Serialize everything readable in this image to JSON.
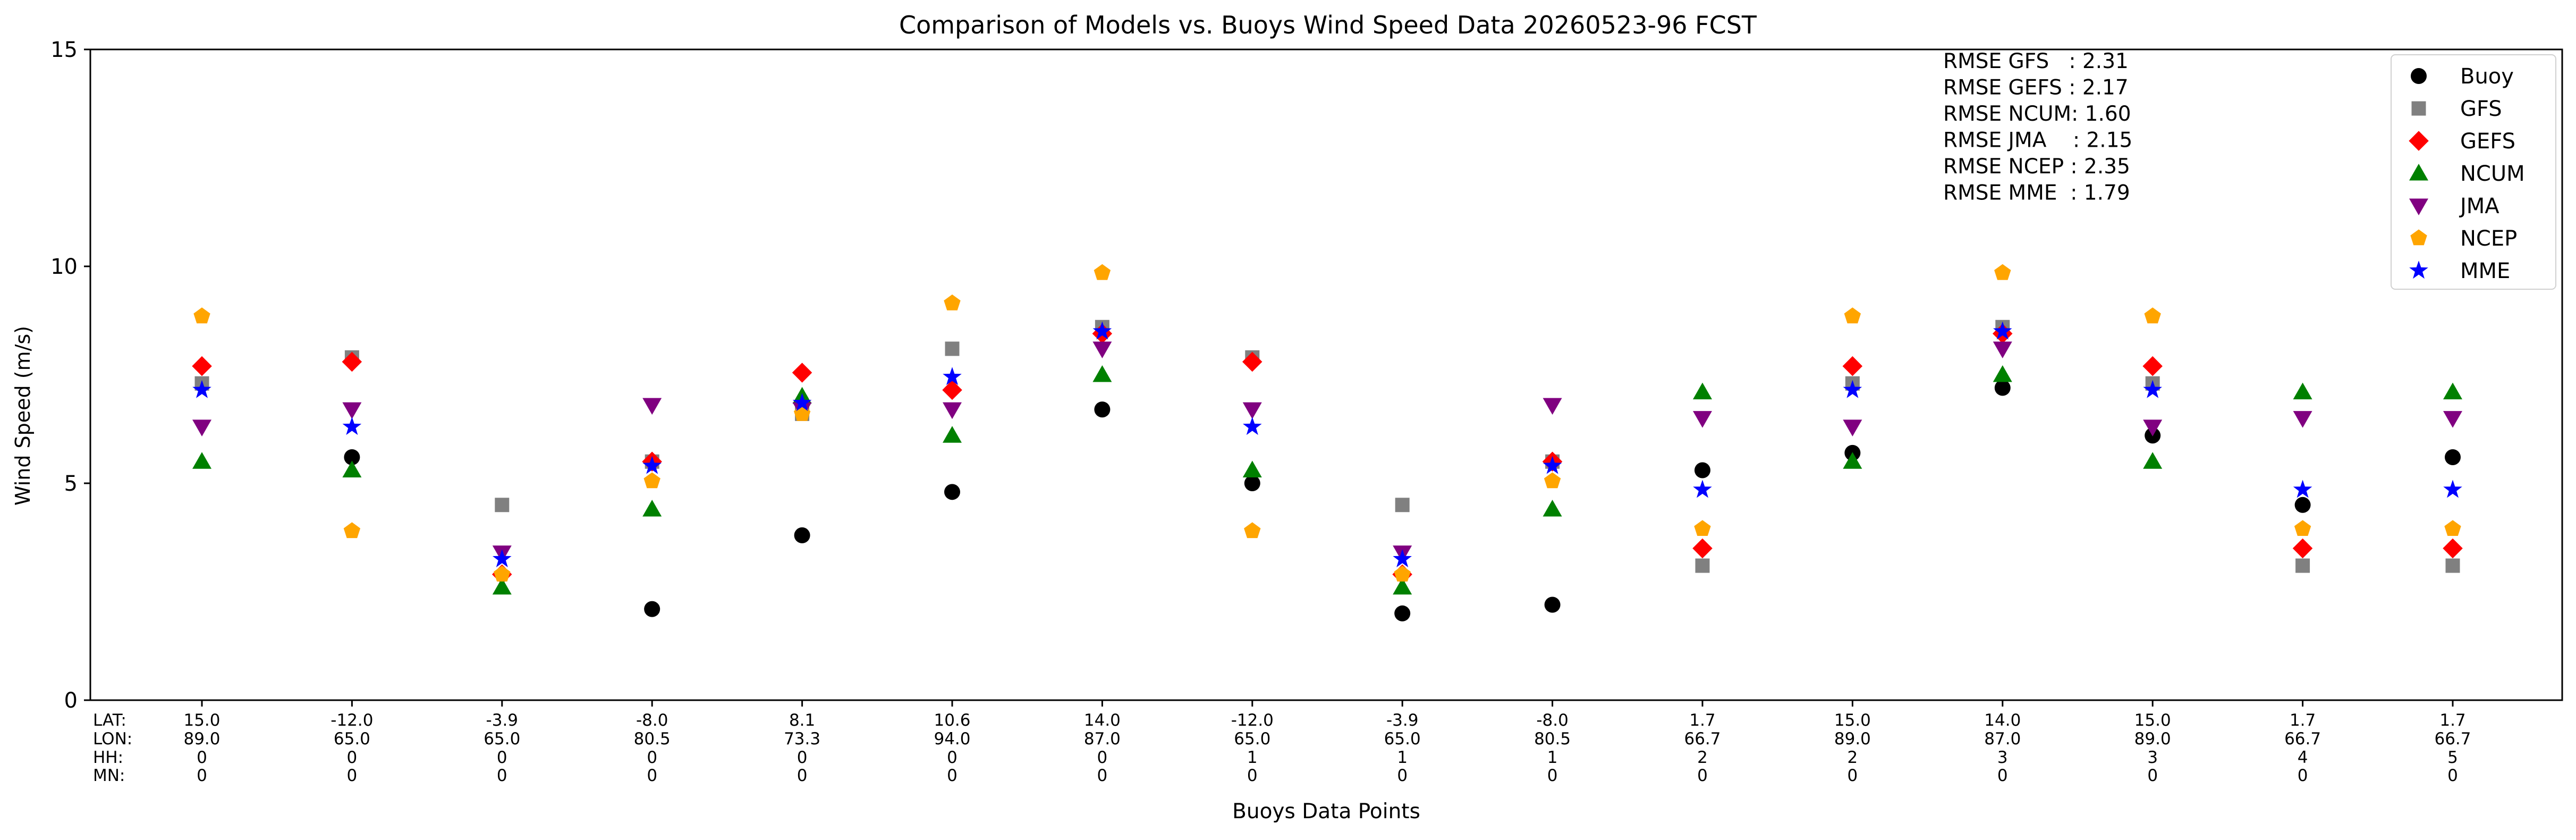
{
  "chart_data": {
    "type": "scatter",
    "title": "Comparison of Models vs. Buoys Wind Speed Data 20260523-96 FCST",
    "xlabel": "Buoys Data Points",
    "ylabel": "Wind Speed (m/s)",
    "ylim": [
      0,
      15
    ],
    "yticks": [
      0,
      5,
      10,
      15
    ],
    "grid": false,
    "legend_position": "top-right",
    "row_labels": [
      "LAT:",
      "LON:",
      "HH:",
      "MN:"
    ],
    "x_columns": [
      [
        "15.0",
        "89.0",
        "0",
        "0"
      ],
      [
        "-12.0",
        "65.0",
        "0",
        "0"
      ],
      [
        "-3.9",
        "65.0",
        "0",
        "0"
      ],
      [
        "-8.0",
        "80.5",
        "0",
        "0"
      ],
      [
        "8.1",
        "73.3",
        "0",
        "0"
      ],
      [
        "10.6",
        "94.0",
        "0",
        "0"
      ],
      [
        "14.0",
        "87.0",
        "0",
        "0"
      ],
      [
        "-12.0",
        "65.0",
        "1",
        "0"
      ],
      [
        "-3.9",
        "65.0",
        "1",
        "0"
      ],
      [
        "-8.0",
        "80.5",
        "1",
        "0"
      ],
      [
        "1.7",
        "66.7",
        "2",
        "0"
      ],
      [
        "15.0",
        "89.0",
        "2",
        "0"
      ],
      [
        "14.0",
        "87.0",
        "3",
        "0"
      ],
      [
        "15.0",
        "89.0",
        "3",
        "0"
      ],
      [
        "1.7",
        "66.7",
        "4",
        "0"
      ],
      [
        "1.7",
        "66.7",
        "5",
        "0"
      ]
    ],
    "series": [
      {
        "name": "Buoy",
        "color": "#000000",
        "marker": "circle",
        "values": [
          null,
          5.6,
          null,
          2.1,
          3.8,
          4.8,
          6.7,
          5.0,
          2.0,
          2.2,
          5.3,
          5.7,
          7.2,
          6.1,
          4.5,
          5.6
        ]
      },
      {
        "name": "GFS",
        "color": "#808080",
        "marker": "square",
        "values": [
          7.3,
          7.9,
          4.5,
          5.5,
          6.6,
          8.1,
          8.6,
          7.9,
          4.5,
          5.5,
          3.1,
          7.3,
          8.6,
          7.3,
          3.1,
          3.1
        ]
      },
      {
        "name": "GEFS",
        "color": "#ff0000",
        "marker": "diamond",
        "values": [
          7.7,
          7.8,
          2.9,
          5.5,
          7.55,
          7.15,
          8.45,
          7.8,
          2.9,
          5.5,
          3.5,
          7.7,
          8.45,
          7.7,
          3.5,
          3.5
        ]
      },
      {
        "name": "NCUM",
        "color": "#008000",
        "marker": "triangle-up",
        "values": [
          5.5,
          5.3,
          2.6,
          4.4,
          7.0,
          6.1,
          7.5,
          5.3,
          2.6,
          4.4,
          7.1,
          5.5,
          7.5,
          5.5,
          7.1,
          7.1
        ]
      },
      {
        "name": "JMA",
        "color": "#800080",
        "marker": "triangle-down",
        "values": [
          6.3,
          6.7,
          3.4,
          6.8,
          6.7,
          6.7,
          8.1,
          6.7,
          3.4,
          6.8,
          6.5,
          6.3,
          8.1,
          6.3,
          6.5,
          6.5
        ]
      },
      {
        "name": "NCEP",
        "color": "#ffa500",
        "marker": "pentagon",
        "values": [
          8.85,
          3.9,
          2.9,
          5.05,
          6.6,
          9.15,
          9.85,
          3.9,
          2.9,
          5.05,
          3.95,
          8.85,
          9.85,
          8.85,
          3.95,
          3.95
        ]
      },
      {
        "name": "MME",
        "color": "#0000ff",
        "marker": "star",
        "values": [
          7.15,
          6.3,
          3.25,
          5.4,
          6.85,
          7.45,
          8.5,
          6.3,
          3.25,
          5.4,
          4.85,
          7.15,
          8.5,
          7.15,
          4.85,
          4.85
        ]
      }
    ],
    "annotation": [
      "RMSE GFS   : 2.31",
      "RMSE GEFS : 2.17",
      "RMSE NCUM: 1.60",
      "RMSE JMA    : 2.15",
      "RMSE NCEP : 2.35",
      "RMSE MME  : 1.79"
    ]
  }
}
